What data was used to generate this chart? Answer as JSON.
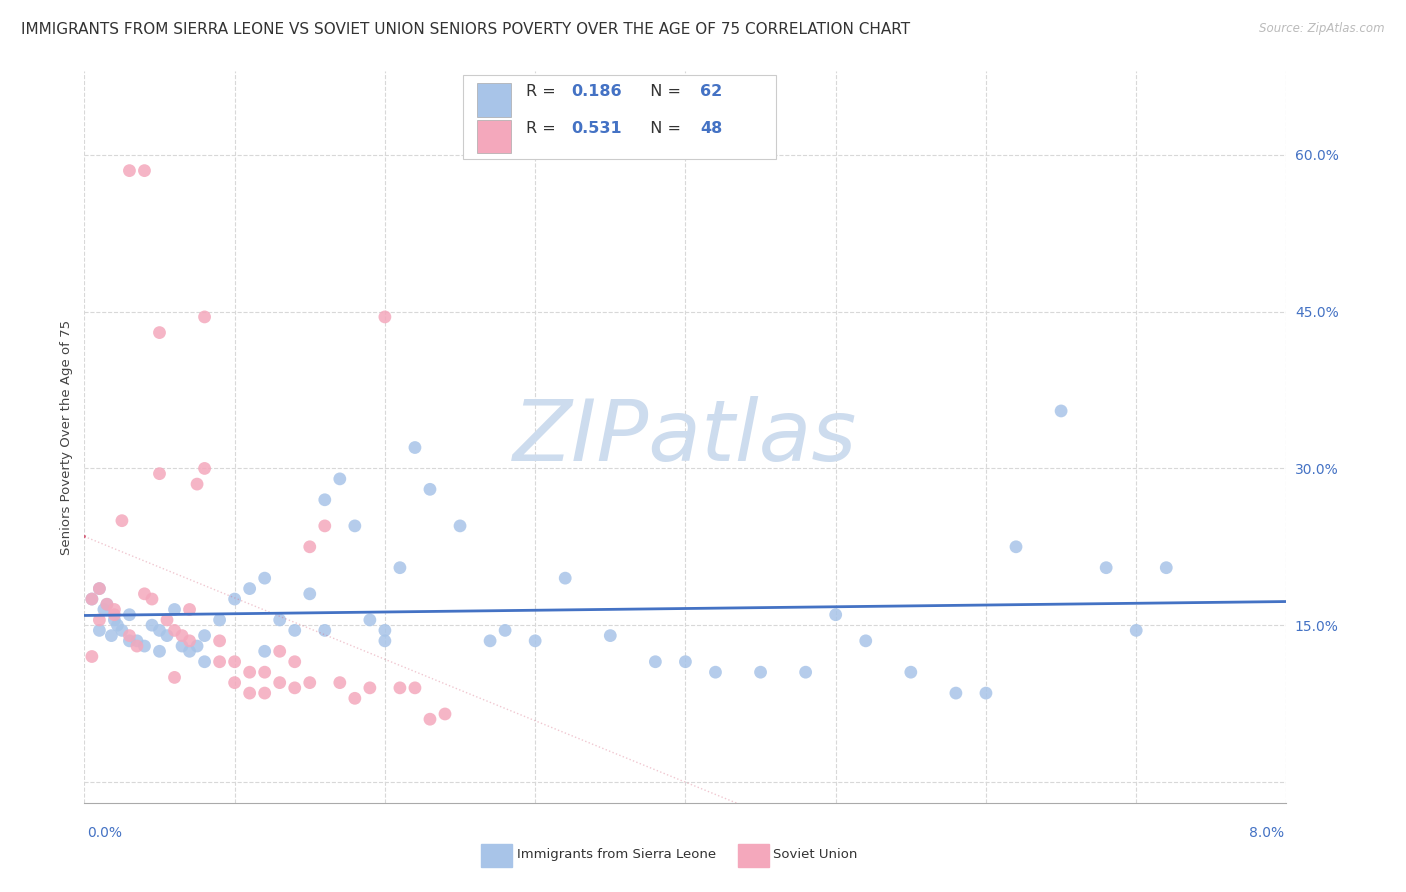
{
  "title": "IMMIGRANTS FROM SIERRA LEONE VS SOVIET UNION SENIORS POVERTY OVER THE AGE OF 75 CORRELATION CHART",
  "source": "Source: ZipAtlas.com",
  "ylabel": "Seniors Poverty Over the Age of 75",
  "xlim": [
    0.0,
    0.08
  ],
  "ylim": [
    -0.02,
    0.68
  ],
  "yticks": [
    0.0,
    0.15,
    0.3,
    0.45,
    0.6
  ],
  "ytick_labels": [
    "",
    "15.0%",
    "30.0%",
    "45.0%",
    "60.0%"
  ],
  "xtick_left": "0.0%",
  "xtick_right": "8.0%",
  "legend_r1": "0.186",
  "legend_n1": "62",
  "legend_r2": "0.531",
  "legend_n2": "48",
  "series1_label": "Immigrants from Sierra Leone",
  "series2_label": "Soviet Union",
  "color1": "#a8c4e8",
  "color2": "#f4a8bc",
  "trendline1_color": "#4472c4",
  "trendline2_color": "#d4607a",
  "legend_text_color": "#4472c4",
  "watermark": "ZIPatlas",
  "watermark_color": "#cddcee",
  "background_color": "#ffffff",
  "grid_color": "#d8d8d8",
  "scatter1_x": [
    0.0005,
    0.001,
    0.0013,
    0.0015,
    0.0018,
    0.002,
    0.0022,
    0.0025,
    0.003,
    0.0035,
    0.004,
    0.0045,
    0.005,
    0.0055,
    0.006,
    0.0065,
    0.007,
    0.0075,
    0.008,
    0.009,
    0.01,
    0.011,
    0.012,
    0.013,
    0.014,
    0.015,
    0.016,
    0.017,
    0.018,
    0.019,
    0.02,
    0.021,
    0.022,
    0.023,
    0.025,
    0.027,
    0.028,
    0.03,
    0.032,
    0.035,
    0.038,
    0.04,
    0.042,
    0.045,
    0.048,
    0.05,
    0.052,
    0.055,
    0.058,
    0.06,
    0.062,
    0.065,
    0.068,
    0.07,
    0.072,
    0.001,
    0.003,
    0.005,
    0.008,
    0.012,
    0.016,
    0.02
  ],
  "scatter1_y": [
    0.175,
    0.185,
    0.165,
    0.17,
    0.14,
    0.155,
    0.15,
    0.145,
    0.16,
    0.135,
    0.13,
    0.15,
    0.145,
    0.14,
    0.165,
    0.13,
    0.125,
    0.13,
    0.14,
    0.155,
    0.175,
    0.185,
    0.195,
    0.155,
    0.145,
    0.18,
    0.27,
    0.29,
    0.245,
    0.155,
    0.145,
    0.205,
    0.32,
    0.28,
    0.245,
    0.135,
    0.145,
    0.135,
    0.195,
    0.14,
    0.115,
    0.115,
    0.105,
    0.105,
    0.105,
    0.16,
    0.135,
    0.105,
    0.085,
    0.085,
    0.225,
    0.355,
    0.205,
    0.145,
    0.205,
    0.145,
    0.135,
    0.125,
    0.115,
    0.125,
    0.145,
    0.135
  ],
  "scatter2_x": [
    0.0005,
    0.001,
    0.0015,
    0.002,
    0.0025,
    0.003,
    0.0035,
    0.004,
    0.0045,
    0.005,
    0.0055,
    0.006,
    0.0065,
    0.007,
    0.0075,
    0.008,
    0.009,
    0.01,
    0.011,
    0.012,
    0.013,
    0.014,
    0.015,
    0.016,
    0.017,
    0.018,
    0.019,
    0.02,
    0.021,
    0.022,
    0.023,
    0.024,
    0.0005,
    0.001,
    0.002,
    0.003,
    0.004,
    0.005,
    0.006,
    0.007,
    0.008,
    0.009,
    0.01,
    0.011,
    0.012,
    0.013,
    0.014,
    0.015
  ],
  "scatter2_y": [
    0.175,
    0.185,
    0.17,
    0.16,
    0.25,
    0.14,
    0.13,
    0.18,
    0.175,
    0.295,
    0.155,
    0.145,
    0.14,
    0.165,
    0.285,
    0.3,
    0.135,
    0.115,
    0.105,
    0.105,
    0.095,
    0.09,
    0.225,
    0.245,
    0.095,
    0.08,
    0.09,
    0.445,
    0.09,
    0.09,
    0.06,
    0.065,
    0.12,
    0.155,
    0.165,
    0.585,
    0.585,
    0.43,
    0.1,
    0.135,
    0.445,
    0.115,
    0.095,
    0.085,
    0.085,
    0.125,
    0.115,
    0.095
  ]
}
